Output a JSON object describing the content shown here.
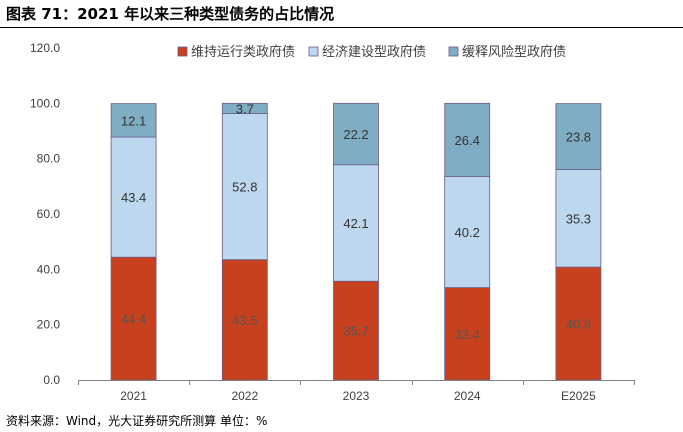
{
  "title": "图表 71：2021 年以来三种类型债务的占比情况",
  "source": "资料来源：Wind，光大证券研究所测算 单位：%",
  "chart_data": {
    "type": "bar",
    "stacked": true,
    "categories": [
      "2021",
      "2022",
      "2023",
      "2024",
      "E2025"
    ],
    "series": [
      {
        "name": "维持运行类政府债",
        "color": "#C8411E",
        "label_color": "#555555",
        "values": [
          44.4,
          43.5,
          35.7,
          33.4,
          40.8
        ]
      },
      {
        "name": "经济建设型政府债",
        "color": "#BDD7EE",
        "label_color": "#333333",
        "values": [
          43.4,
          52.8,
          42.1,
          40.2,
          35.3
        ]
      },
      {
        "name": "缓释风险型政府债",
        "color": "#7FADC3",
        "label_color": "#333333",
        "values": [
          12.1,
          3.7,
          22.2,
          26.4,
          23.8
        ]
      }
    ],
    "ylim": [
      0,
      120
    ],
    "yticks": [
      "0.0",
      "20.0",
      "40.0",
      "60.0",
      "80.0",
      "100.0",
      "120.0"
    ],
    "legend_position": "top",
    "grid": false
  }
}
